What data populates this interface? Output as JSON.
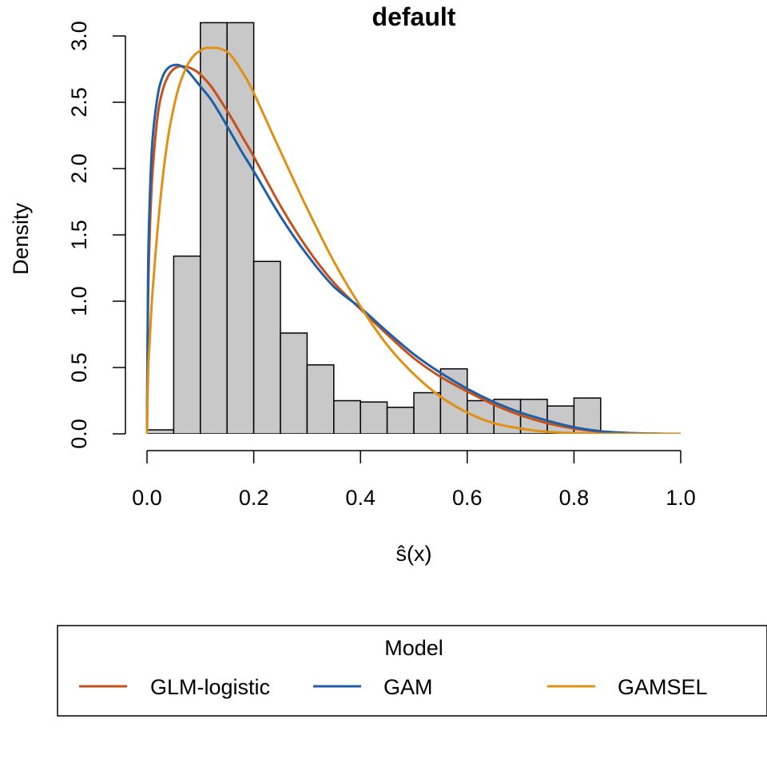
{
  "chart_data": {
    "type": "bar",
    "title": "default",
    "xlabel": "ŝ(x)",
    "ylabel": "Density",
    "xlim": [
      0,
      1
    ],
    "ylim": [
      0,
      3
    ],
    "x_ticks": [
      "0.0",
      "0.2",
      "0.4",
      "0.6",
      "0.8",
      "1.0"
    ],
    "y_ticks": [
      "0.0",
      "0.5",
      "1.0",
      "1.5",
      "2.0",
      "2.5",
      "3.0"
    ],
    "histogram": {
      "bin_width": 0.05,
      "bin_starts": [
        0.0,
        0.05,
        0.1,
        0.15,
        0.2,
        0.25,
        0.3,
        0.35,
        0.4,
        0.45,
        0.5,
        0.55,
        0.6,
        0.65,
        0.7,
        0.75,
        0.8
      ],
      "values": [
        0.03,
        1.34,
        3.1,
        3.1,
        1.3,
        0.76,
        0.52,
        0.25,
        0.24,
        0.2,
        0.31,
        0.49,
        0.25,
        0.26,
        0.26,
        0.21,
        0.27
      ],
      "fill": "#c8c8c8"
    },
    "series": [
      {
        "name": "GLM-logistic",
        "color": "#c8501a",
        "x": [
          0,
          0.002,
          0.005,
          0.01,
          0.02,
          0.03,
          0.04,
          0.05,
          0.06,
          0.07,
          0.08,
          0.09,
          0.1,
          0.12,
          0.14,
          0.16,
          0.18,
          0.2,
          0.25,
          0.3,
          0.35,
          0.4,
          0.45,
          0.5,
          0.55,
          0.6,
          0.65,
          0.7,
          0.75,
          0.8,
          0.85,
          0.9,
          0.95,
          1.0
        ],
        "values": [
          0,
          1.0,
          1.5,
          1.95,
          2.4,
          2.6,
          2.7,
          2.75,
          2.77,
          2.77,
          2.76,
          2.74,
          2.71,
          2.62,
          2.5,
          2.37,
          2.23,
          2.09,
          1.72,
          1.4,
          1.14,
          0.94,
          0.75,
          0.57,
          0.43,
          0.32,
          0.22,
          0.14,
          0.08,
          0.04,
          0.015,
          0.005,
          0.0,
          0.0
        ]
      },
      {
        "name": "GAM",
        "color": "#1f5fa8",
        "x": [
          0,
          0.002,
          0.005,
          0.01,
          0.02,
          0.03,
          0.04,
          0.05,
          0.06,
          0.07,
          0.08,
          0.09,
          0.1,
          0.12,
          0.14,
          0.16,
          0.18,
          0.2,
          0.25,
          0.3,
          0.35,
          0.4,
          0.45,
          0.5,
          0.55,
          0.6,
          0.65,
          0.7,
          0.75,
          0.8,
          0.85,
          0.9,
          0.95,
          1.0
        ],
        "values": [
          0,
          1.2,
          1.75,
          2.2,
          2.55,
          2.7,
          2.76,
          2.78,
          2.78,
          2.76,
          2.72,
          2.67,
          2.62,
          2.52,
          2.39,
          2.25,
          2.11,
          1.98,
          1.64,
          1.35,
          1.11,
          0.95,
          0.77,
          0.6,
          0.46,
          0.34,
          0.24,
          0.16,
          0.1,
          0.05,
          0.02,
          0.007,
          0.002,
          0.0
        ]
      },
      {
        "name": "GAMSEL",
        "color": "#e09012",
        "x": [
          0,
          0.002,
          0.005,
          0.01,
          0.02,
          0.03,
          0.04,
          0.05,
          0.06,
          0.07,
          0.08,
          0.09,
          0.1,
          0.11,
          0.12,
          0.13,
          0.14,
          0.15,
          0.16,
          0.18,
          0.2,
          0.25,
          0.3,
          0.35,
          0.4,
          0.45,
          0.5,
          0.55,
          0.6,
          0.65,
          0.7,
          0.75,
          0.8,
          0.85,
          0.9,
          0.95,
          1.0
        ],
        "values": [
          0,
          0.45,
          0.7,
          1.05,
          1.55,
          1.95,
          2.25,
          2.46,
          2.62,
          2.73,
          2.81,
          2.86,
          2.89,
          2.91,
          2.91,
          2.91,
          2.9,
          2.88,
          2.84,
          2.72,
          2.57,
          2.13,
          1.7,
          1.3,
          0.96,
          0.67,
          0.45,
          0.28,
          0.16,
          0.08,
          0.04,
          0.015,
          0.005,
          0.0,
          0.0,
          0.0,
          0.0
        ]
      }
    ],
    "legend": {
      "title": "Model",
      "position": "bottom",
      "entries": [
        "GLM-logistic",
        "GAM",
        "GAMSEL"
      ]
    }
  }
}
